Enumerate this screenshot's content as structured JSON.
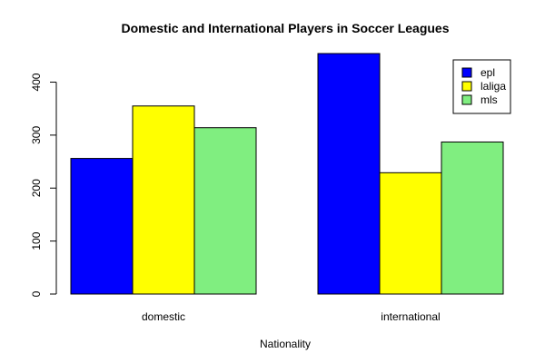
{
  "chart_data": {
    "type": "bar",
    "title": "Domestic and International Players in Soccer Leagues",
    "xlabel": "Nationality",
    "ylabel": "",
    "categories": [
      "domestic",
      "international"
    ],
    "series": [
      {
        "name": "epl",
        "color": "#0000FF",
        "values": [
          256,
          454
        ]
      },
      {
        "name": "laliga",
        "color": "#FFFF00",
        "values": [
          355,
          229
        ]
      },
      {
        "name": "mls",
        "color": "#80EE80",
        "values": [
          314,
          287
        ]
      }
    ],
    "ylim": [
      0,
      454
    ],
    "yticks": [
      0,
      100,
      200,
      300,
      400
    ],
    "grid": false,
    "legend_position": "top-right"
  }
}
